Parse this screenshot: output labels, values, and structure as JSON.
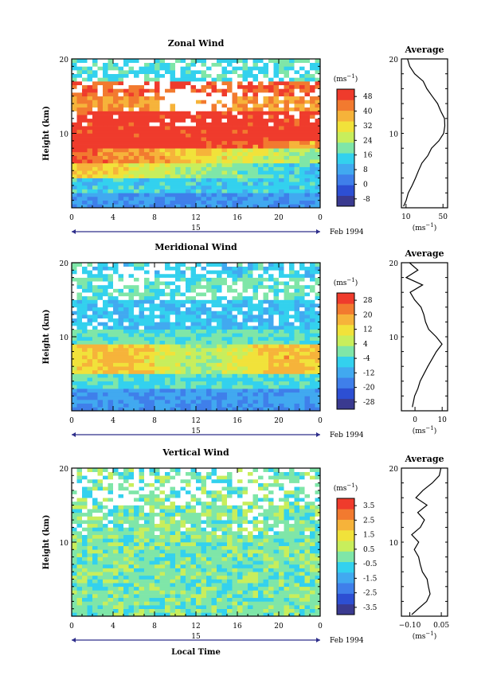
{
  "chart_data": [
    {
      "type": "heatmap",
      "title": "Zonal Wind",
      "ylabel": "Height (km)",
      "ylim": [
        0,
        20
      ],
      "xlim": [
        0,
        24
      ],
      "x_ticks": [
        "0",
        "4",
        "8",
        "12",
        "16",
        "20",
        "0"
      ],
      "y_ticks": [
        "20",
        "10"
      ],
      "date_label": "15",
      "month_label": "Feb 1994",
      "colorbar": {
        "unit_label": "(ms",
        "unit_exp": "−1",
        "ticks": [
          "48",
          "40",
          "32",
          "24",
          "16",
          "8",
          "0",
          "-8"
        ],
        "range": [
          -12,
          52
        ],
        "colors": [
          "#3a3a90",
          "#2d4fd3",
          "#3f7fea",
          "#41a9f0",
          "#33d1ee",
          "#7fe6a8",
          "#c8ee5c",
          "#f1e23a",
          "#f6b33a",
          "#f27a2f",
          "#ef3b2c"
        ]
      },
      "profile": {
        "title": "Average",
        "x_ticks": [
          "10",
          "50"
        ],
        "xlim": [
          5,
          55
        ],
        "unit_label": "(ms",
        "unit_exp": "−1",
        "values": [
          [
            8,
            0.2
          ],
          [
            10,
            1
          ],
          [
            13,
            2
          ],
          [
            16,
            3
          ],
          [
            20,
            4
          ],
          [
            24,
            5
          ],
          [
            28,
            6
          ],
          [
            33,
            7
          ],
          [
            38,
            8
          ],
          [
            45,
            9
          ],
          [
            50,
            10
          ],
          [
            52,
            11
          ],
          [
            51,
            12
          ],
          [
            47,
            13
          ],
          [
            44,
            14
          ],
          [
            38,
            15
          ],
          [
            33,
            16
          ],
          [
            28,
            17
          ],
          [
            20,
            18
          ],
          [
            14,
            19
          ],
          [
            12,
            20
          ]
        ]
      },
      "regime": [
        {
          "h0": 0,
          "h1": 2,
          "value": 6
        },
        {
          "h0": 2,
          "h1": 4,
          "value": 14
        },
        {
          "h0": 4,
          "h1": 6,
          "value": 24
        },
        {
          "h0": 6,
          "h1": 8,
          "value": 34
        },
        {
          "h0": 8,
          "h1": 13,
          "value": 50
        },
        {
          "h0": 13,
          "h1": 15,
          "value": 40
        },
        {
          "h0": 15,
          "h1": 17,
          "value": 46
        },
        {
          "h0": 17,
          "h1": 20,
          "value": 16
        }
      ]
    },
    {
      "type": "heatmap",
      "title": "Meridional Wind",
      "ylabel": "Height (km)",
      "ylim": [
        0,
        20
      ],
      "xlim": [
        0,
        24
      ],
      "x_ticks": [
        "0",
        "4",
        "8",
        "12",
        "16",
        "20",
        "0"
      ],
      "y_ticks": [
        "20",
        "10"
      ],
      "date_label": "15",
      "month_label": "Feb 1994",
      "colorbar": {
        "unit_label": "(ms",
        "unit_exp": "−1",
        "ticks": [
          "28",
          "20",
          "12",
          "4",
          "-4",
          "-12",
          "-20",
          "-28"
        ],
        "range": [
          -32,
          32
        ],
        "colors": [
          "#3a3a90",
          "#2d4fd3",
          "#3f7fea",
          "#41a9f0",
          "#33d1ee",
          "#7fe6a8",
          "#c8ee5c",
          "#f1e23a",
          "#f6b33a",
          "#f27a2f",
          "#ef3b2c"
        ]
      },
      "profile": {
        "title": "Average",
        "x_ticks": [
          "0",
          "10"
        ],
        "xlim": [
          -5,
          12
        ],
        "unit_label": "(ms",
        "unit_exp": "−1",
        "values": [
          [
            -1,
            0.5
          ],
          [
            0,
            2
          ],
          [
            1,
            3
          ],
          [
            2,
            4
          ],
          [
            5,
            6
          ],
          [
            8,
            8
          ],
          [
            10,
            9
          ],
          [
            8,
            10
          ],
          [
            5,
            11
          ],
          [
            4,
            12
          ],
          [
            3,
            13
          ],
          [
            2,
            14
          ],
          [
            0,
            15
          ],
          [
            -2,
            16
          ],
          [
            3,
            17
          ],
          [
            -3,
            18
          ],
          [
            1,
            19
          ],
          [
            -2,
            20
          ]
        ]
      },
      "regime": [
        {
          "h0": 0,
          "h1": 3,
          "value": -14
        },
        {
          "h0": 3,
          "h1": 5,
          "value": -4
        },
        {
          "h0": 5,
          "h1": 9,
          "value": 10
        },
        {
          "h0": 9,
          "h1": 11,
          "value": -2
        },
        {
          "h0": 11,
          "h1": 15,
          "value": -8
        },
        {
          "h0": 15,
          "h1": 18,
          "value": -2
        },
        {
          "h0": 18,
          "h1": 20,
          "value": -6
        }
      ]
    },
    {
      "type": "heatmap",
      "title": "Vertical Wind",
      "ylabel": "Height (km)",
      "xlabel": "Local Time",
      "ylim": [
        0,
        20
      ],
      "xlim": [
        0,
        24
      ],
      "x_ticks": [
        "0",
        "4",
        "8",
        "12",
        "16",
        "20",
        "0"
      ],
      "y_ticks": [
        "20",
        "10"
      ],
      "date_label": "15",
      "month_label": "Feb 1994",
      "colorbar": {
        "unit_label": "(ms",
        "unit_exp": "−1",
        "ticks": [
          "3.5",
          "2.5",
          "1.5",
          "0.5",
          "-0.5",
          "-1.5",
          "-2.5",
          "-3.5"
        ],
        "range": [
          -4,
          4
        ],
        "colors": [
          "#3a3a90",
          "#2d4fd3",
          "#3f7fea",
          "#41a9f0",
          "#33d1ee",
          "#7fe6a8",
          "#c8ee5c",
          "#f1e23a",
          "#f6b33a",
          "#f27a2f",
          "#ef3b2c"
        ]
      },
      "profile": {
        "title": "Average",
        "x_ticks": [
          "−0.10",
          "0.05"
        ],
        "xlim": [
          -0.14,
          0.08
        ],
        "unit_label": "(ms",
        "unit_exp": "−1",
        "values": [
          [
            -0.09,
            0.2
          ],
          [
            -0.06,
            1
          ],
          [
            -0.02,
            2
          ],
          [
            0.0,
            3
          ],
          [
            -0.01,
            4
          ],
          [
            -0.02,
            5
          ],
          [
            -0.04,
            6
          ],
          [
            -0.05,
            7
          ],
          [
            -0.06,
            8
          ],
          [
            -0.08,
            9
          ],
          [
            -0.06,
            10
          ],
          [
            -0.09,
            11
          ],
          [
            -0.05,
            12
          ],
          [
            -0.03,
            13
          ],
          [
            -0.06,
            14
          ],
          [
            -0.02,
            15
          ],
          [
            -0.07,
            16
          ],
          [
            -0.04,
            17
          ],
          [
            0.01,
            18
          ],
          [
            0.04,
            19
          ],
          [
            0.05,
            20
          ]
        ]
      },
      "regime": [
        {
          "h0": 0,
          "h1": 20,
          "value": 0
        }
      ]
    }
  ]
}
